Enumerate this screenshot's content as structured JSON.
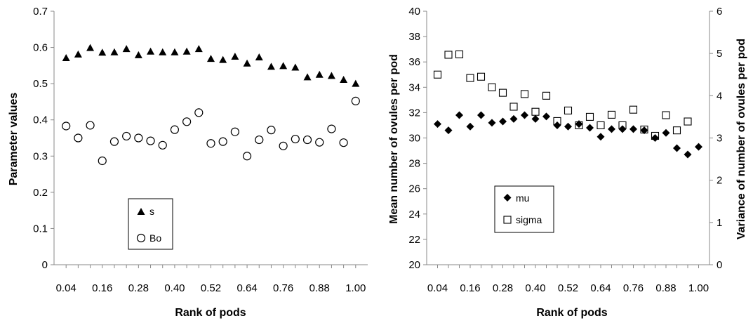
{
  "chart_data": [
    {
      "type": "scatter",
      "title": "",
      "xlabel": "Rank of pods",
      "ylabel": "Parameter values",
      "x_tick_labels": [
        "0.04",
        "0.16",
        "0.28",
        "0.40",
        "0.52",
        "0.64",
        "0.76",
        "0.88",
        "1.00"
      ],
      "y_tick_labels": [
        "0",
        "0.1",
        "0.2",
        "0.3",
        "0.4",
        "0.5",
        "0.6",
        "0.7"
      ],
      "xlim": [
        0.0,
        1.04
      ],
      "ylim": [
        0,
        0.7
      ],
      "grid": false,
      "legend_position": "lower-left",
      "x": [
        0.04,
        0.08,
        0.12,
        0.16,
        0.2,
        0.24,
        0.28,
        0.32,
        0.36,
        0.4,
        0.44,
        0.48,
        0.52,
        0.56,
        0.6,
        0.64,
        0.68,
        0.72,
        0.76,
        0.8,
        0.84,
        0.88,
        0.92,
        0.96,
        1.0
      ],
      "series": [
        {
          "name": "s",
          "marker": "triangle-filled",
          "color": "#000000",
          "values": [
            0.57,
            0.58,
            0.598,
            0.585,
            0.586,
            0.595,
            0.578,
            0.588,
            0.586,
            0.586,
            0.588,
            0.595,
            0.568,
            0.565,
            0.574,
            0.555,
            0.572,
            0.546,
            0.548,
            0.544,
            0.517,
            0.524,
            0.521,
            0.51,
            0.499
          ]
        },
        {
          "name": "Bo",
          "marker": "circle-open",
          "color": "#000000",
          "values": [
            0.383,
            0.35,
            0.385,
            0.287,
            0.34,
            0.355,
            0.35,
            0.342,
            0.33,
            0.373,
            0.395,
            0.42,
            0.335,
            0.34,
            0.367,
            0.3,
            0.345,
            0.372,
            0.328,
            0.347,
            0.345,
            0.338,
            0.375,
            0.337,
            0.452
          ]
        }
      ]
    },
    {
      "type": "scatter",
      "title": "",
      "xlabel": "Rank of pods",
      "ylabel": "Mean number of ovules per pod",
      "y2label": "Variance of number of ovules per pod",
      "x_tick_labels": [
        "0.04",
        "0.16",
        "0.28",
        "0.40",
        "0.52",
        "0.64",
        "0.76",
        "0.88",
        "1.00"
      ],
      "y_tick_labels": [
        "20",
        "22",
        "24",
        "26",
        "28",
        "30",
        "32",
        "34",
        "36",
        "38",
        "40"
      ],
      "y2_tick_labels": [
        "0",
        "1",
        "2",
        "3",
        "4",
        "5",
        "6"
      ],
      "xlim": [
        0.0,
        1.04
      ],
      "ylim": [
        20,
        40
      ],
      "y2lim": [
        0,
        6
      ],
      "grid": false,
      "legend_position": "lower-left",
      "x": [
        0.04,
        0.08,
        0.12,
        0.16,
        0.2,
        0.24,
        0.28,
        0.32,
        0.36,
        0.4,
        0.44,
        0.48,
        0.52,
        0.56,
        0.6,
        0.64,
        0.68,
        0.72,
        0.76,
        0.8,
        0.84,
        0.88,
        0.92,
        0.96,
        1.0
      ],
      "series": [
        {
          "name": "mu",
          "marker": "diamond-filled",
          "axis": "left",
          "color": "#000000",
          "values": [
            31.1,
            30.6,
            31.8,
            30.9,
            31.8,
            31.2,
            31.3,
            31.5,
            31.8,
            31.5,
            31.7,
            31.0,
            30.9,
            31.1,
            30.8,
            30.1,
            30.7,
            30.7,
            30.7,
            30.6,
            30.0,
            30.4,
            29.2,
            28.7,
            29.3
          ]
        },
        {
          "name": "sigma",
          "marker": "square-open",
          "axis": "right",
          "color": "#000000",
          "values": [
            4.5,
            4.97,
            4.98,
            4.42,
            4.45,
            4.2,
            4.07,
            3.74,
            4.04,
            3.62,
            4.0,
            3.4,
            3.65,
            3.3,
            3.5,
            3.3,
            3.55,
            3.3,
            3.67,
            3.2,
            3.05,
            3.54,
            3.18,
            3.39,
            null
          ]
        }
      ]
    }
  ]
}
